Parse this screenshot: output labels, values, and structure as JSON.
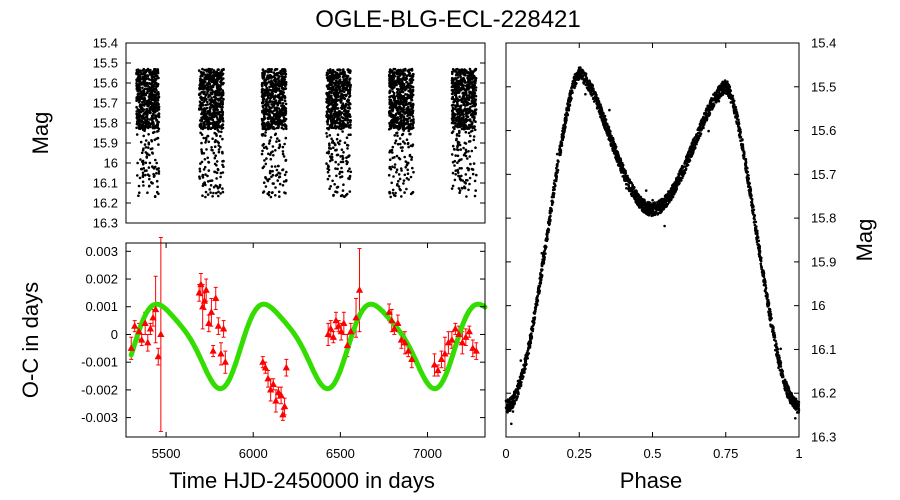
{
  "title": "OGLE-BLG-ECL-228421",
  "colors": {
    "oc_points": "#ff0000",
    "fit_curve": "#33dd00",
    "phot_points": "#000000"
  },
  "chart_data": [
    {
      "id": "light-curve-time",
      "type": "scatter",
      "xlabel": "",
      "ylabel": "Mag",
      "xlim": [
        5270,
        7330
      ],
      "ylim": [
        15.4,
        16.3
      ],
      "y_inverted": true,
      "y_ticks": [
        "15.4",
        "15.5",
        "15.6",
        "15.7",
        "15.8",
        "15.9",
        "16",
        "16.1",
        "16.2",
        "16.3"
      ],
      "seasons": [
        {
          "x_start": 5330,
          "x_end": 5460
        },
        {
          "x_start": 5690,
          "x_end": 5830
        },
        {
          "x_start": 6050,
          "x_end": 6190
        },
        {
          "x_start": 6420,
          "x_end": 6560
        },
        {
          "x_start": 6780,
          "x_end": 6920
        },
        {
          "x_start": 7140,
          "x_end": 7280
        }
      ],
      "mag_dense_range": [
        15.53,
        15.83
      ],
      "mag_min": 15.53,
      "mag_max": 16.17
    },
    {
      "id": "oc-diagram",
      "type": "scatter",
      "xlabel": "Time HJD-2450000 in days",
      "ylabel": "O-C in days",
      "xlim": [
        5270,
        7330
      ],
      "ylim": [
        -0.0037,
        0.0033
      ],
      "x_ticks": [
        "5500",
        "6000",
        "6500",
        "7000"
      ],
      "y_ticks": [
        "0.003",
        "0.002",
        "0.001",
        "0",
        "-0.001",
        "-0.002",
        "-0.003"
      ],
      "series": [
        {
          "name": "O-C",
          "x": [
            5300,
            5320,
            5345,
            5360,
            5380,
            5395,
            5410,
            5425,
            5440,
            5455,
            5470,
            5690,
            5700,
            5710,
            5720,
            5730,
            5745,
            5760,
            5770,
            5785,
            5800,
            5815,
            5830,
            5840,
            6055,
            6070,
            6085,
            6100,
            6115,
            6130,
            6145,
            6160,
            6170,
            6180,
            6190,
            6430,
            6445,
            6460,
            6475,
            6490,
            6505,
            6520,
            6540,
            6560,
            6590,
            6610,
            6780,
            6795,
            6810,
            6830,
            6850,
            6870,
            6890,
            6910,
            7040,
            7060,
            7080,
            7100,
            7120,
            7140,
            7160,
            7180,
            7200,
            7220,
            7240,
            7260,
            7280
          ],
          "y": [
            -0.0005,
            0.0003,
            0.0001,
            -0.0002,
            0.0004,
            -0.0003,
            0.0002,
            0.0006,
            0.0009,
            -0.0008,
            0.0,
            0.0015,
            0.0018,
            0.001,
            0.0012,
            0.0016,
            0.0004,
            0.0008,
            -0.0006,
            0.0013,
            0.0003,
            -0.0007,
            0.0002,
            -0.001,
            -0.001,
            -0.0012,
            -0.0016,
            -0.002,
            -0.0018,
            -0.0024,
            -0.0021,
            -0.0022,
            -0.0029,
            -0.0026,
            -0.0012,
            0.0,
            0.0002,
            -0.0001,
            0.0005,
            0.0003,
            0.0001,
            0.0004,
            -0.0004,
            0.0001,
            0.0006,
            0.0016,
            0.0008,
            0.0005,
            0.0002,
            0.0004,
            -0.0002,
            -0.0003,
            -0.0006,
            -0.0009,
            -0.0011,
            -0.0013,
            -0.0009,
            -0.0007,
            -0.0003,
            -0.0002,
            0.0002,
            0.0,
            -0.0003,
            -0.0001,
            0.0001,
            -0.0005,
            -0.0006
          ],
          "err": [
            0.0004,
            0.0002,
            0.0003,
            0.0002,
            0.0004,
            0.0003,
            0.0002,
            0.0003,
            0.0012,
            0.0003,
            0.0035,
            0.0003,
            0.0004,
            0.0008,
            0.0003,
            0.0004,
            0.0003,
            0.0005,
            0.0002,
            0.0004,
            0.0003,
            0.0004,
            0.0003,
            0.0004,
            0.0002,
            0.0002,
            0.0003,
            0.0004,
            0.0002,
            0.0004,
            0.0002,
            0.0003,
            0.0002,
            0.0003,
            0.0003,
            0.0004,
            0.0003,
            0.0002,
            0.0003,
            0.0002,
            0.0003,
            0.0004,
            0.0004,
            0.0003,
            0.0007,
            0.0015,
            0.0003,
            0.0004,
            0.0002,
            0.0003,
            0.0003,
            0.0004,
            0.0002,
            0.0003,
            0.0004,
            0.0002,
            0.0003,
            0.0006,
            0.0004,
            0.0003,
            0.0002,
            0.0003,
            0.0004,
            0.0003,
            0.0002,
            0.0003,
            0.0003
          ]
        },
        {
          "name": "LTTE fit",
          "model": {
            "baseline": -0.0003,
            "amplitude": 0.00145,
            "period": 615,
            "t0": 5330,
            "shape": 0.55
          }
        }
      ]
    },
    {
      "id": "phased-light-curve",
      "type": "scatter",
      "xlabel": "Phase",
      "ylabel": "Mag",
      "xlim": [
        0,
        1
      ],
      "ylim": [
        15.4,
        16.3
      ],
      "y_inverted": true,
      "x_ticks": [
        "0",
        "0.25",
        "0.5",
        "0.75",
        "1"
      ],
      "y_ticks": [
        "15.4",
        "15.5",
        "15.6",
        "15.7",
        "15.8",
        "15.9",
        "16",
        "16.1",
        "16.2",
        "16.3"
      ],
      "primary_minimum": {
        "phase": 0.0,
        "mag": 16.23
      },
      "secondary_minimum": {
        "phase": 0.5,
        "mag": 15.78
      },
      "maxima": [
        {
          "phase": 0.25,
          "mag": 15.47
        },
        {
          "phase": 0.75,
          "mag": 15.5
        }
      ]
    }
  ]
}
